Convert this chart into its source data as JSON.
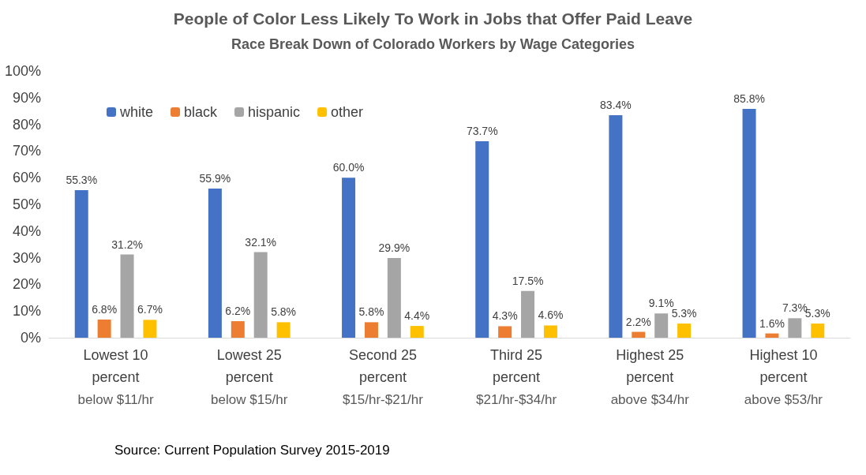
{
  "chart_data": {
    "type": "bar",
    "title": "People of Color Less Likely To Work in Jobs that Offer Paid Leave",
    "subtitle": "Race Break Down of Colorado Workers by Wage Categories",
    "categories": [
      "Lowest 10\npercent\nbelow $11/hr",
      "Lowest 25\npercent\nbelow $15/hr",
      "Second 25\npercent\n$15/hr-$21/hr",
      "Third 25\npercent\n$21/hr-$34/hr",
      "Highest 25\npercent\nabove $34/hr",
      "Highest 10\npercent\nabove $53/hr"
    ],
    "series": [
      {
        "name": "white",
        "color": "#4472c4",
        "values": [
          55.3,
          55.9,
          60.0,
          73.7,
          83.4,
          85.8
        ],
        "value_labels": [
          "55.3%",
          "55.9%",
          "60.0%",
          "73.7%",
          "83.4%",
          "85.8%"
        ]
      },
      {
        "name": "black",
        "color": "#ed7d31",
        "values": [
          6.8,
          6.2,
          5.8,
          4.3,
          2.2,
          1.6
        ],
        "value_labels": [
          "6.8%",
          "6.2%",
          "5.8%",
          "4.3%",
          "2.2%",
          "1.6%"
        ]
      },
      {
        "name": "hispanic",
        "color": "#a5a5a5",
        "values": [
          31.2,
          32.1,
          29.9,
          17.5,
          9.1,
          7.3
        ],
        "value_labels": [
          "31.2%",
          "32.1%",
          "29.9%",
          "17.5%",
          "9.1%",
          "7.3%"
        ]
      },
      {
        "name": "other",
        "color": "#ffc000",
        "values": [
          6.7,
          5.8,
          4.4,
          4.6,
          5.3,
          5.3
        ],
        "value_labels": [
          "6.7%",
          "5.8%",
          "4.4%",
          "4.6%",
          "5.3%",
          "5.3%"
        ]
      }
    ],
    "ylim": [
      0,
      100
    ],
    "yticks": [
      {
        "value": 0,
        "label": "0%"
      },
      {
        "value": 10,
        "label": "10%"
      },
      {
        "value": 20,
        "label": "20%"
      },
      {
        "value": 30,
        "label": "30%"
      },
      {
        "value": 40,
        "label": "40%"
      },
      {
        "value": 50,
        "label": "50%"
      },
      {
        "value": 60,
        "label": "60%"
      },
      {
        "value": 70,
        "label": "70%"
      },
      {
        "value": 80,
        "label": "80%"
      },
      {
        "value": 90,
        "label": "90%"
      },
      {
        "value": 100,
        "label": "100%"
      }
    ],
    "grid": false,
    "legend": "top left",
    "annotations": [
      "Source: Current Population Survey 2015-2019"
    ]
  }
}
